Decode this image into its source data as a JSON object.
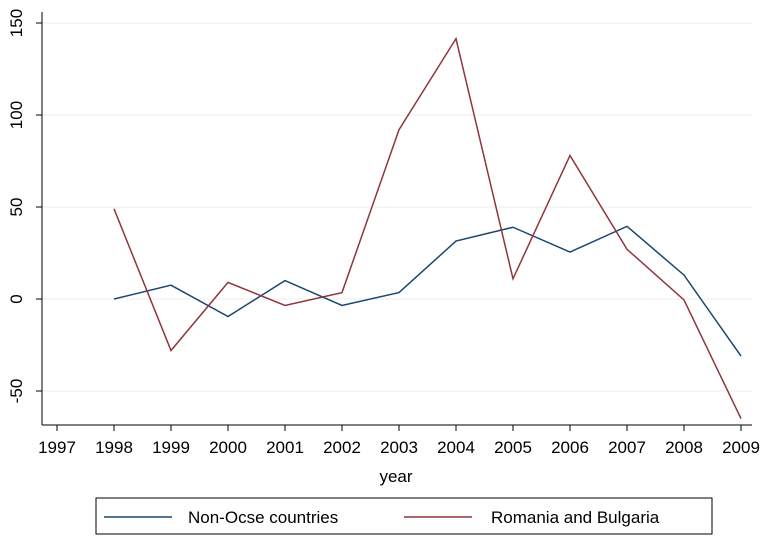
{
  "chart_data": {
    "type": "line",
    "title": "",
    "xlabel": "year",
    "ylabel": "",
    "x": [
      1998,
      1999,
      2000,
      2001,
      2002,
      2003,
      2004,
      2005,
      2006,
      2007,
      2008,
      2009
    ],
    "x_ticks": [
      "1997",
      "1998",
      "1999",
      "2000",
      "2001",
      "2002",
      "2003",
      "2004",
      "2005",
      "2006",
      "2007",
      "2008",
      "2009"
    ],
    "xlim": [
      1997,
      2009
    ],
    "y_ticks": [
      "-50",
      "0",
      "50",
      "100",
      "150"
    ],
    "ylim": [
      -70,
      152
    ],
    "grid": "horizontal",
    "legend_position": "bottom",
    "series": [
      {
        "name": "Non-Ocse countries",
        "color": "#1a476f",
        "values": [
          0,
          7.5,
          -9.5,
          10,
          -3.5,
          3.5,
          31.5,
          39,
          25.5,
          39.5,
          13,
          -31
        ]
      },
      {
        "name": "Romania and Bulgaria",
        "color": "#90353b",
        "values": [
          49,
          -28,
          9,
          -3.5,
          3.5,
          92,
          141.5,
          11,
          78,
          27,
          -0.5,
          -65
        ]
      }
    ]
  }
}
